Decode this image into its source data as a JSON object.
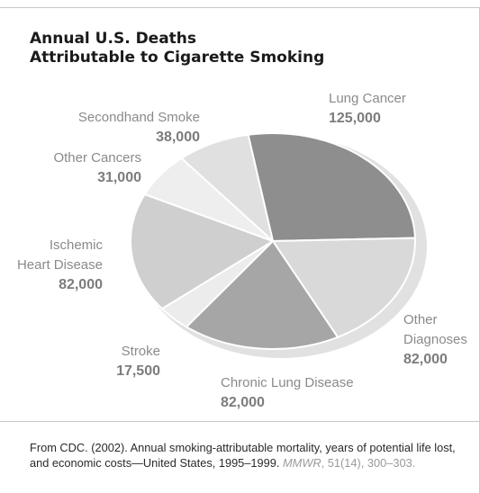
{
  "chart_data": {
    "type": "pie",
    "title_lines": [
      "Annual U.S. Deaths",
      "Attributable to Cigarette Smoking"
    ],
    "slices": [
      {
        "label_lines": [
          "Lung Cancer"
        ],
        "value": 125000,
        "value_label": "125,000",
        "color": "#8e8e8e"
      },
      {
        "label_lines": [
          "Other",
          "Diagnoses"
        ],
        "value": 82000,
        "value_label": "82,000",
        "color": "#d9d9d9"
      },
      {
        "label_lines": [
          "Chronic Lung Disease"
        ],
        "value": 82000,
        "value_label": "82,000",
        "color": "#a6a6a6"
      },
      {
        "label_lines": [
          "Stroke"
        ],
        "value": 17500,
        "value_label": "17,500",
        "color": "#ececec"
      },
      {
        "label_lines": [
          "Ischemic",
          "Heart Disease"
        ],
        "value": 82000,
        "value_label": "82,000",
        "color": "#cfcfcf"
      },
      {
        "label_lines": [
          "Other Cancers"
        ],
        "value": 31000,
        "value_label": "31,000",
        "color": "#eeeeee"
      },
      {
        "label_lines": [
          "Secondhand Smoke"
        ],
        "value": 38000,
        "value_label": "38,000",
        "color": "#e0e0e0"
      }
    ]
  },
  "source": {
    "text": "From CDC. (2002). Annual smoking-attributable mortality, years of potential life lost, and economic costs—United States, 1995–1999.",
    "journal": "MMWR",
    "tail": ", 51(14), 300–303."
  }
}
